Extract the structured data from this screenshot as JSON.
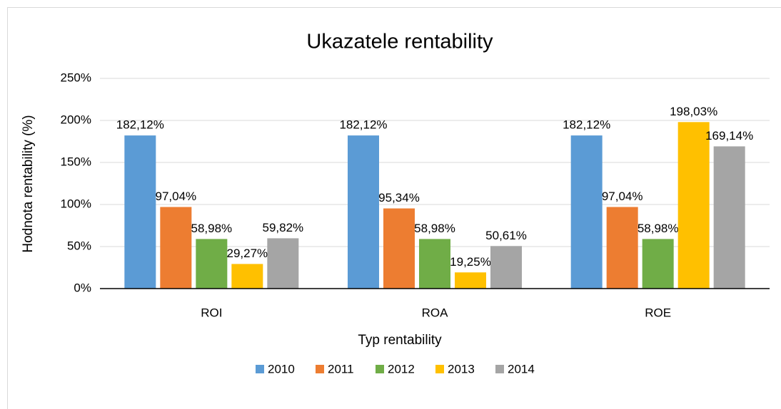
{
  "chart_data": {
    "type": "bar",
    "title": "Ukazatele rentability",
    "x_label": "Typ rentability",
    "y_label": "Hodnota rentability (%)",
    "categories": [
      "ROI",
      "ROA",
      "ROE"
    ],
    "series": [
      {
        "name": "2010",
        "color": "#5b9bd5",
        "values": [
          182.12,
          182.12,
          182.12
        ],
        "value_labels": [
          "182,12%",
          "182,12%",
          "182,12%"
        ]
      },
      {
        "name": "2011",
        "color": "#ed7d31",
        "values": [
          97.04,
          95.34,
          97.04
        ],
        "value_labels": [
          "97,04%",
          "95,34%",
          "97,04%"
        ]
      },
      {
        "name": "2012",
        "color": "#70ad47",
        "values": [
          58.98,
          58.98,
          58.98
        ],
        "value_labels": [
          "58,98%",
          "58,98%",
          "58,98%"
        ]
      },
      {
        "name": "2013",
        "color": "#ffc000",
        "values": [
          29.27,
          19.25,
          198.03
        ],
        "value_labels": [
          "29,27%",
          "19,25%",
          "198,03%"
        ]
      },
      {
        "name": "2014",
        "color": "#a5a5a5",
        "values": [
          59.82,
          50.61,
          169.14
        ],
        "value_labels": [
          "59,82%",
          "50,61%",
          "169,14%"
        ]
      }
    ],
    "ylim": [
      0,
      250
    ],
    "yticks": [
      {
        "value": 0,
        "label": "0%"
      },
      {
        "value": 50,
        "label": "50%"
      },
      {
        "value": 100,
        "label": "100%"
      },
      {
        "value": 150,
        "label": "150%"
      },
      {
        "value": 200,
        "label": "200%"
      },
      {
        "value": 250,
        "label": "250%"
      }
    ],
    "grid": true,
    "legend": "bottom"
  }
}
